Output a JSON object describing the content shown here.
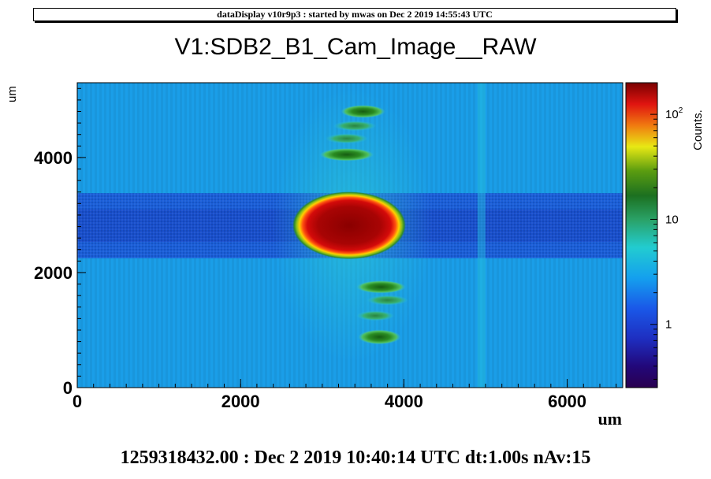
{
  "header": {
    "text": "dataDisplay v10r9p3 : started by mwas on Dec  2 2019 14:55:43 UTC"
  },
  "chart_data": {
    "type": "heatmap",
    "title": "V1:SDB2_B1_Cam_Image__RAW",
    "xlabel": "um",
    "ylabel": "um",
    "zlabel": "Counts.",
    "xlim": [
      0,
      6680
    ],
    "ylim": [
      0,
      5300
    ],
    "x_ticks": [
      "0",
      "2000",
      "4000",
      "6000"
    ],
    "y_ticks": [
      "0",
      "2000",
      "4000"
    ],
    "z_scale": "log",
    "z_ticks": [
      "1",
      "10",
      "10^2"
    ],
    "z_range": [
      0.25,
      200
    ],
    "features": {
      "background_level": 2,
      "horizontal_band": {
        "y_range": [
          2250,
          3380
        ],
        "level": 1
      },
      "vertical_stripe": {
        "x": 4950,
        "level": 3
      },
      "central_spot": {
        "x": 3330,
        "y": 2820,
        "rx": 630,
        "ry": 560,
        "level": 200
      },
      "side_lobes": [
        {
          "x": 3500,
          "y": 4800,
          "rx": 270,
          "ry": 70,
          "level": 12
        },
        {
          "x": 3400,
          "y": 4550,
          "rx": 260,
          "ry": 55,
          "level": 7
        },
        {
          "x": 3300,
          "y": 4330,
          "rx": 260,
          "ry": 55,
          "level": 7
        },
        {
          "x": 3300,
          "y": 4050,
          "rx": 330,
          "ry": 70,
          "level": 12
        },
        {
          "x": 3720,
          "y": 1750,
          "rx": 300,
          "ry": 70,
          "level": 12
        },
        {
          "x": 3800,
          "y": 1520,
          "rx": 250,
          "ry": 55,
          "level": 7
        },
        {
          "x": 3650,
          "y": 1250,
          "rx": 230,
          "ry": 55,
          "level": 7
        },
        {
          "x": 3700,
          "y": 880,
          "rx": 260,
          "ry": 80,
          "level": 12
        }
      ]
    }
  },
  "footer": {
    "text": "1259318432.00 : Dec  2 2019 10:40:14 UTC dt:1.00s nAv:15"
  }
}
